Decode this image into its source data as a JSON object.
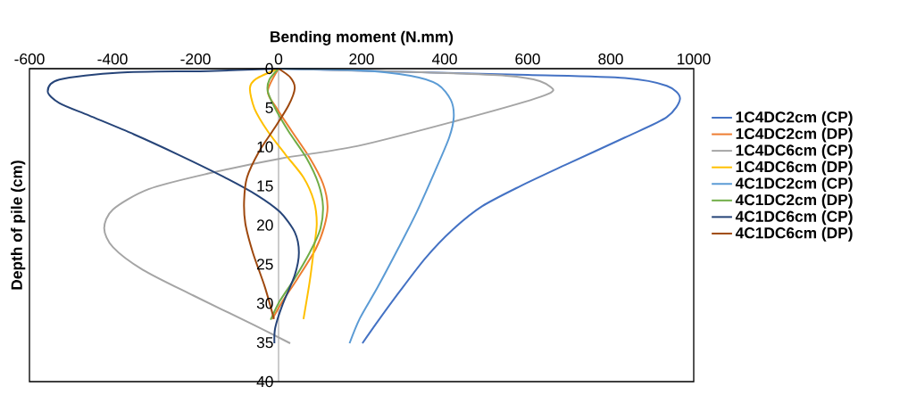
{
  "chart_data": {
    "type": "line",
    "xlabel": "Bending moment (N.mm)",
    "ylabel": "Depth of pile (cm)",
    "xlim": [
      -600,
      1000
    ],
    "xticks": [
      -600,
      -400,
      -200,
      0,
      200,
      400,
      600,
      800,
      1000
    ],
    "ylim": [
      40,
      0
    ],
    "yticks": [
      0,
      5,
      10,
      15,
      20,
      25,
      30,
      35,
      40
    ],
    "grid": false,
    "legend": "right",
    "line_style": "solid",
    "series": [
      {
        "name": "1C4DC2cm (CP)",
        "color": "#4472c4",
        "x": [
          0,
          300,
          600,
          834,
          935,
          967,
          935,
          834,
          691,
          583,
          490,
          419,
          354,
          290,
          239,
          202
        ],
        "values": [
          0,
          0.4,
          0.8,
          1.2,
          2.2,
          3.8,
          6.2,
          8.8,
          12.3,
          15,
          17.6,
          20.6,
          24.2,
          28.6,
          32.3,
          35.1
        ]
      },
      {
        "name": "1C4DC2cm (DP)",
        "color": "#ed7d31",
        "x": [
          0,
          -26,
          -4,
          32,
          75,
          107,
          118,
          110,
          89,
          46,
          10,
          -15
        ],
        "values": [
          0,
          2.9,
          5.1,
          8,
          11.4,
          14.7,
          17.6,
          20.2,
          23.1,
          26.8,
          29.7,
          32
        ]
      },
      {
        "name": "1C4DC6cm (CP)",
        "color": "#a5a5a5",
        "x": [
          0,
          548,
          659,
          619,
          419,
          189,
          3,
          -169,
          -313,
          -399,
          -420,
          -399,
          -327,
          -205,
          -62,
          28
        ],
        "values": [
          0,
          0.9,
          2.5,
          3.8,
          6.8,
          9.9,
          11.5,
          13.4,
          15.4,
          18,
          20.4,
          22.8,
          25.7,
          29,
          32.7,
          35.1
        ]
      },
      {
        "name": "1C4DC6cm (DP)",
        "color": "#ffc000",
        "x": [
          0,
          -54,
          -69,
          -58,
          -26,
          17,
          60,
          85,
          92,
          85,
          75,
          60
        ],
        "values": [
          0,
          1.3,
          2.5,
          5.1,
          8,
          11,
          13.9,
          16.9,
          19.8,
          23.1,
          27.2,
          32
        ]
      },
      {
        "name": "4C1DC2cm (CP)",
        "color": "#5b9bd5",
        "x": [
          0,
          189,
          318,
          383,
          415,
          422,
          411,
          376,
          333,
          290,
          239,
          196,
          171
        ],
        "values": [
          0,
          0.2,
          0.9,
          2,
          4,
          6.2,
          8.8,
          13.2,
          18.3,
          22.8,
          27.9,
          31.9,
          35.1
        ]
      },
      {
        "name": "4C1DC2cm (DP)",
        "color": "#70ad47",
        "x": [
          0,
          -22,
          -26,
          -8,
          24,
          67,
          96,
          107,
          100,
          75,
          39,
          3,
          -19
        ],
        "values": [
          0,
          1.4,
          2.9,
          5.1,
          8,
          11.4,
          14.7,
          17.6,
          20.6,
          23.5,
          26.8,
          29.7,
          32.1
        ]
      },
      {
        "name": "4C1DC6cm (CP)",
        "color": "#264478",
        "x": [
          0,
          -169,
          -384,
          -528,
          -556,
          -528,
          -456,
          -348,
          -241,
          -133,
          -54,
          3,
          39,
          49,
          39,
          10,
          -8,
          -10
        ],
        "values": [
          0,
          0.3,
          0.5,
          1.4,
          2.9,
          4.4,
          6,
          8.4,
          11,
          13.8,
          16.1,
          18.3,
          20.9,
          23.5,
          26.4,
          30.1,
          33.1,
          35.1
        ]
      },
      {
        "name": "4C1DC6cm (DP)",
        "color": "#9e480e",
        "x": [
          0,
          28,
          39,
          24,
          -11,
          -47,
          -76,
          -83,
          -80,
          -62,
          -33,
          -11
        ],
        "values": [
          0,
          1.1,
          2.5,
          4.7,
          7.7,
          10.6,
          13.9,
          16.9,
          19.8,
          23.5,
          27.9,
          32
        ]
      }
    ]
  }
}
